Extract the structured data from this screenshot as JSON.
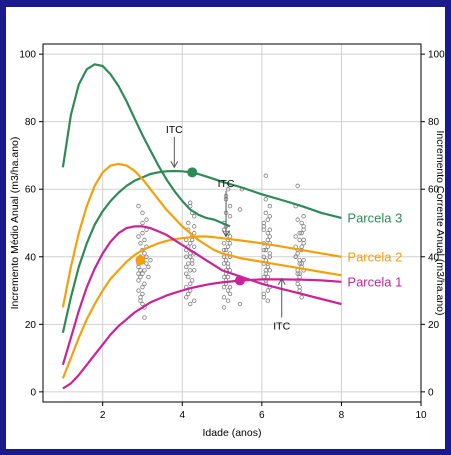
{
  "chart_data": {
    "type": "line",
    "title": "",
    "xlabel": "Idade (anos)",
    "ylabel_left": "Incremento Médio Anual (m3/ha.ano)",
    "ylabel_right": "Incremento Corrente Anual (m3/ha.ano)",
    "xlim": [
      0.5,
      10
    ],
    "ylim": [
      -3,
      103
    ],
    "xticks": [
      2,
      4,
      6,
      8,
      10
    ],
    "yticks": [
      0,
      20,
      40,
      60,
      80,
      100
    ],
    "grid": true,
    "series": [
      {
        "name": "Parcela 3",
        "color": "#2e8b57",
        "ica": {
          "x": [
            1.0,
            1.2,
            1.4,
            1.6,
            1.8,
            2.0,
            2.2,
            2.4,
            2.6,
            2.8,
            3.0,
            3.2,
            3.4,
            3.6,
            3.8,
            4.0,
            4.2,
            4.4,
            4.6,
            4.8,
            5.0,
            5.2
          ],
          "y": [
            66.5,
            82,
            91,
            95.5,
            97,
            96.5,
            94,
            90.5,
            86,
            81,
            76,
            71.5,
            67,
            63,
            59.5,
            56.5,
            54,
            52.5,
            51.5,
            51,
            50,
            49
          ]
        },
        "ima": {
          "x": [
            1.0,
            1.2,
            1.4,
            1.6,
            1.8,
            2.0,
            2.2,
            2.4,
            2.6,
            2.8,
            3.0,
            3.2,
            3.4,
            3.6,
            3.8,
            4.0,
            4.2,
            4.4,
            4.6,
            4.8,
            5.0,
            5.5,
            6.0,
            6.5,
            7.0,
            7.5,
            8.0
          ],
          "y": [
            17.5,
            28,
            37,
            44,
            49.5,
            53.5,
            56.5,
            59,
            61,
            62.5,
            63.5,
            64.5,
            65,
            65.3,
            65.4,
            65.3,
            65,
            64.5,
            63.8,
            63,
            62.2,
            60.5,
            58.5,
            56.8,
            55,
            53,
            51.5
          ]
        },
        "max_point": {
          "x": 4.25,
          "y": 65
        }
      },
      {
        "name": "Parcela 2",
        "color": "#f5a00a",
        "ica": {
          "x": [
            1.0,
            1.2,
            1.4,
            1.6,
            1.8,
            2.0,
            2.2,
            2.4,
            2.6,
            2.8,
            3.0,
            3.2,
            3.4,
            3.6,
            3.8,
            4.0,
            4.2,
            4.4,
            4.6,
            4.8,
            5.0,
            5.5,
            6.0,
            6.5,
            7.0,
            7.5,
            8.0
          ],
          "y": [
            25,
            37,
            47,
            55,
            61,
            65,
            67,
            67.5,
            67,
            65.5,
            63,
            60,
            57,
            54,
            51.5,
            49,
            47,
            45,
            43.5,
            42,
            41,
            39.5,
            38.5,
            37.5,
            36.5,
            35.5,
            34.5
          ]
        },
        "ima": {
          "x": [
            1.0,
            1.2,
            1.4,
            1.6,
            1.8,
            2.0,
            2.2,
            2.4,
            2.6,
            2.8,
            3.0,
            3.2,
            3.4,
            3.6,
            3.8,
            4.0,
            4.2,
            4.4,
            4.6,
            4.8,
            5.0,
            5.5,
            6.0,
            6.5,
            7.0,
            7.5,
            8.0
          ],
          "y": [
            4,
            10,
            16,
            21.5,
            26,
            30,
            33.5,
            36,
            38.5,
            40.5,
            42,
            43,
            44,
            44.7,
            45.2,
            45.5,
            45.8,
            46,
            46,
            45.8,
            45.5,
            44.8,
            44,
            43,
            42,
            41,
            40
          ]
        },
        "max_point": {
          "x": 2.95,
          "y": 39
        }
      },
      {
        "name": "Parcela 1",
        "color": "#cc2299",
        "ica": {
          "x": [
            1.0,
            1.2,
            1.4,
            1.6,
            1.8,
            2.0,
            2.2,
            2.4,
            2.6,
            2.8,
            3.0,
            3.2,
            3.4,
            3.6,
            3.8,
            4.0,
            4.2,
            4.4,
            4.6,
            4.8,
            5.0,
            5.5,
            6.0,
            6.5,
            7.0,
            7.5,
            8.0
          ],
          "y": [
            8,
            16,
            24,
            31,
            36.5,
            41,
            44.5,
            47,
            48.5,
            49,
            49,
            48.5,
            47.5,
            46.5,
            45,
            43.5,
            42,
            40.5,
            39,
            37.5,
            36,
            34,
            32,
            30.5,
            29,
            27.5,
            26
          ]
        },
        "ima": {
          "x": [
            1.0,
            1.2,
            1.4,
            1.6,
            1.8,
            2.0,
            2.2,
            2.4,
            2.6,
            2.8,
            3.0,
            3.2,
            3.4,
            3.6,
            3.8,
            4.0,
            4.2,
            4.4,
            4.6,
            4.8,
            5.0,
            5.5,
            6.0,
            6.5,
            7.0,
            7.5,
            8.0
          ],
          "y": [
            1,
            2.5,
            5,
            8,
            11,
            14,
            17,
            19.5,
            21.5,
            23.5,
            25,
            26.5,
            27.5,
            28.5,
            29.3,
            30,
            30.7,
            31.2,
            31.7,
            32.1,
            32.4,
            33,
            33.3,
            33.3,
            33.2,
            33,
            32.6
          ]
        },
        "max_point": {
          "x": 5.45,
          "y": 33
        }
      }
    ],
    "annotations": [
      {
        "label": "ITC",
        "x": 3.8,
        "y": 76
      },
      {
        "label": "ITC",
        "x": 5.1,
        "y": 60
      },
      {
        "label": "ITC",
        "x": 6.5,
        "y": 19
      }
    ],
    "scatter": {
      "color": "#7f7f7f",
      "points": [
        [
          2.9,
          37
        ],
        [
          2.95,
          36
        ],
        [
          2.9,
          35
        ],
        [
          3.0,
          39
        ],
        [
          2.95,
          40
        ],
        [
          2.9,
          38
        ],
        [
          3.05,
          41
        ],
        [
          3.0,
          42
        ],
        [
          2.9,
          33
        ],
        [
          3.0,
          31
        ],
        [
          2.95,
          34
        ],
        [
          3.05,
          36
        ],
        [
          3.1,
          38
        ],
        [
          2.9,
          30
        ],
        [
          3.0,
          29
        ],
        [
          2.95,
          27
        ],
        [
          3.05,
          45
        ],
        [
          3.0,
          50
        ],
        [
          2.9,
          55
        ],
        [
          3.1,
          48
        ],
        [
          3.0,
          26
        ],
        [
          3.05,
          32
        ],
        [
          2.95,
          44
        ],
        [
          3.1,
          40
        ],
        [
          3.0,
          53
        ],
        [
          3.15,
          37
        ],
        [
          3.05,
          25
        ],
        [
          3.1,
          43
        ],
        [
          2.9,
          46
        ],
        [
          3.0,
          47
        ],
        [
          3.1,
          51
        ],
        [
          3.15,
          34
        ],
        [
          3.05,
          22
        ],
        [
          2.95,
          28
        ],
        [
          3.2,
          39
        ],
        [
          3.0,
          35
        ],
        [
          4.15,
          38
        ],
        [
          4.2,
          40
        ],
        [
          4.1,
          42
        ],
        [
          4.25,
          45
        ],
        [
          4.2,
          36
        ],
        [
          4.1,
          35
        ],
        [
          4.3,
          47
        ],
        [
          4.15,
          50
        ],
        [
          4.25,
          33
        ],
        [
          4.2,
          30
        ],
        [
          4.1,
          28
        ],
        [
          4.3,
          52
        ],
        [
          4.2,
          55
        ],
        [
          4.15,
          43
        ],
        [
          4.25,
          39
        ],
        [
          4.1,
          37
        ],
        [
          4.3,
          41
        ],
        [
          4.2,
          44
        ],
        [
          4.15,
          48
        ],
        [
          4.25,
          46
        ],
        [
          4.2,
          32
        ],
        [
          4.3,
          27
        ],
        [
          4.15,
          34
        ],
        [
          4.1,
          31
        ],
        [
          4.25,
          53
        ],
        [
          4.2,
          56
        ],
        [
          4.3,
          36
        ],
        [
          4.1,
          45
        ],
        [
          4.2,
          41
        ],
        [
          4.15,
          29
        ],
        [
          4.3,
          49
        ],
        [
          4.25,
          38
        ],
        [
          4.2,
          26
        ],
        [
          4.1,
          40
        ],
        [
          4.3,
          43
        ],
        [
          5.05,
          40
        ],
        [
          5.1,
          42
        ],
        [
          5.15,
          45
        ],
        [
          5.05,
          38
        ],
        [
          5.2,
          36
        ],
        [
          5.1,
          35
        ],
        [
          5.15,
          47
        ],
        [
          5.05,
          50
        ],
        [
          5.2,
          52
        ],
        [
          5.1,
          33
        ],
        [
          5.15,
          30
        ],
        [
          5.05,
          28
        ],
        [
          5.2,
          55
        ],
        [
          5.1,
          58
        ],
        [
          5.15,
          60
        ],
        [
          5.05,
          44
        ],
        [
          5.2,
          41
        ],
        [
          5.1,
          39
        ],
        [
          5.15,
          37
        ],
        [
          5.05,
          48
        ],
        [
          5.2,
          46
        ],
        [
          5.1,
          32
        ],
        [
          5.15,
          27
        ],
        [
          5.05,
          34
        ],
        [
          5.2,
          31
        ],
        [
          5.1,
          53
        ],
        [
          5.15,
          43
        ],
        [
          5.05,
          25
        ],
        [
          5.2,
          40
        ],
        [
          5.1,
          36
        ],
        [
          5.15,
          38
        ],
        [
          5.05,
          42
        ],
        [
          5.2,
          44
        ],
        [
          5.1,
          49
        ],
        [
          5.15,
          34
        ],
        [
          5.05,
          31
        ],
        [
          5.2,
          29
        ],
        [
          5.1,
          57
        ],
        [
          5.45,
          54
        ],
        [
          5.5,
          60
        ],
        [
          5.45,
          26
        ],
        [
          6.05,
          40
        ],
        [
          6.1,
          42
        ],
        [
          6.15,
          45
        ],
        [
          6.05,
          38
        ],
        [
          6.2,
          36
        ],
        [
          6.1,
          35
        ],
        [
          6.15,
          47
        ],
        [
          6.05,
          50
        ],
        [
          6.2,
          52
        ],
        [
          6.1,
          33
        ],
        [
          6.15,
          30
        ],
        [
          6.05,
          28
        ],
        [
          6.2,
          55
        ],
        [
          6.1,
          57
        ],
        [
          6.05,
          44
        ],
        [
          6.2,
          41
        ],
        [
          6.1,
          39
        ],
        [
          6.15,
          37
        ],
        [
          6.05,
          48
        ],
        [
          6.2,
          46
        ],
        [
          6.1,
          32
        ],
        [
          6.15,
          27
        ],
        [
          6.05,
          34
        ],
        [
          6.2,
          31
        ],
        [
          6.1,
          53
        ],
        [
          6.15,
          43
        ],
        [
          6.05,
          49
        ],
        [
          6.2,
          40
        ],
        [
          6.1,
          36
        ],
        [
          6.15,
          38
        ],
        [
          6.05,
          42
        ],
        [
          6.2,
          44
        ],
        [
          6.15,
          34
        ],
        [
          6.1,
          64
        ],
        [
          6.05,
          29
        ],
        [
          6.15,
          51
        ],
        [
          6.2,
          48
        ],
        [
          6.85,
          40
        ],
        [
          6.9,
          42
        ],
        [
          6.95,
          45
        ],
        [
          7.0,
          38
        ],
        [
          7.05,
          36
        ],
        [
          6.9,
          35
        ],
        [
          6.95,
          47
        ],
        [
          7.0,
          50
        ],
        [
          7.05,
          52
        ],
        [
          6.9,
          33
        ],
        [
          6.95,
          30
        ],
        [
          7.0,
          28
        ],
        [
          6.85,
          55
        ],
        [
          7.05,
          44
        ],
        [
          6.9,
          41
        ],
        [
          6.95,
          39
        ],
        [
          7.0,
          37
        ],
        [
          7.05,
          48
        ],
        [
          6.85,
          46
        ],
        [
          6.9,
          32
        ],
        [
          6.95,
          34
        ],
        [
          7.0,
          43
        ],
        [
          7.05,
          49
        ],
        [
          6.85,
          40
        ],
        [
          6.9,
          36
        ],
        [
          6.95,
          38
        ],
        [
          7.0,
          42
        ],
        [
          7.05,
          45
        ],
        [
          6.9,
          61
        ],
        [
          6.95,
          31
        ],
        [
          7.0,
          47
        ],
        [
          6.85,
          43
        ],
        [
          7.05,
          39
        ],
        [
          6.9,
          51
        ],
        [
          6.95,
          35
        ]
      ]
    }
  }
}
